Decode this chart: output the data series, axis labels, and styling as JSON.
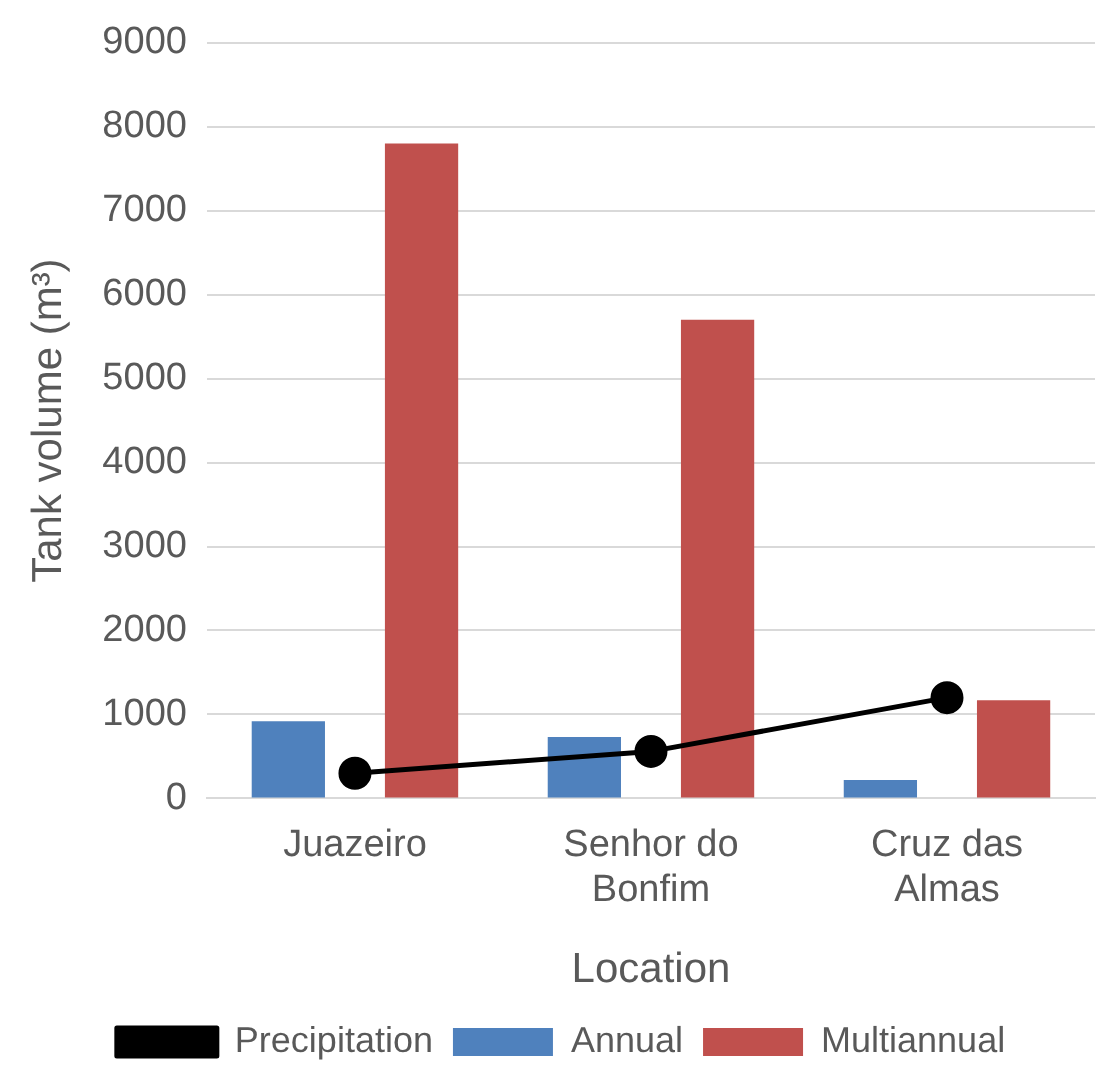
{
  "chart_data": {
    "type": "bar",
    "xlabel": "Location",
    "ylabel": "Tank volume (m³)",
    "categories": [
      "Juazeiro",
      "Senhor do Bonfim",
      "Cruz das Almas"
    ],
    "series": [
      {
        "name": "Annual",
        "color": "#4f81bd",
        "values": [
          920,
          730,
          220
        ]
      },
      {
        "name": "Multiannual",
        "color": "#c0504d",
        "values": [
          7800,
          5700,
          1170
        ]
      },
      {
        "name": "Precipitation",
        "type": "line",
        "color": "#000000",
        "values": [
          300,
          560,
          1200
        ]
      }
    ],
    "ylim": [
      0,
      9000
    ],
    "yticks": [
      0,
      1000,
      2000,
      3000,
      4000,
      5000,
      6000,
      7000,
      8000,
      9000
    ],
    "grid": "y",
    "legend": "bottom",
    "marker": "circle",
    "line_style": "solid"
  }
}
